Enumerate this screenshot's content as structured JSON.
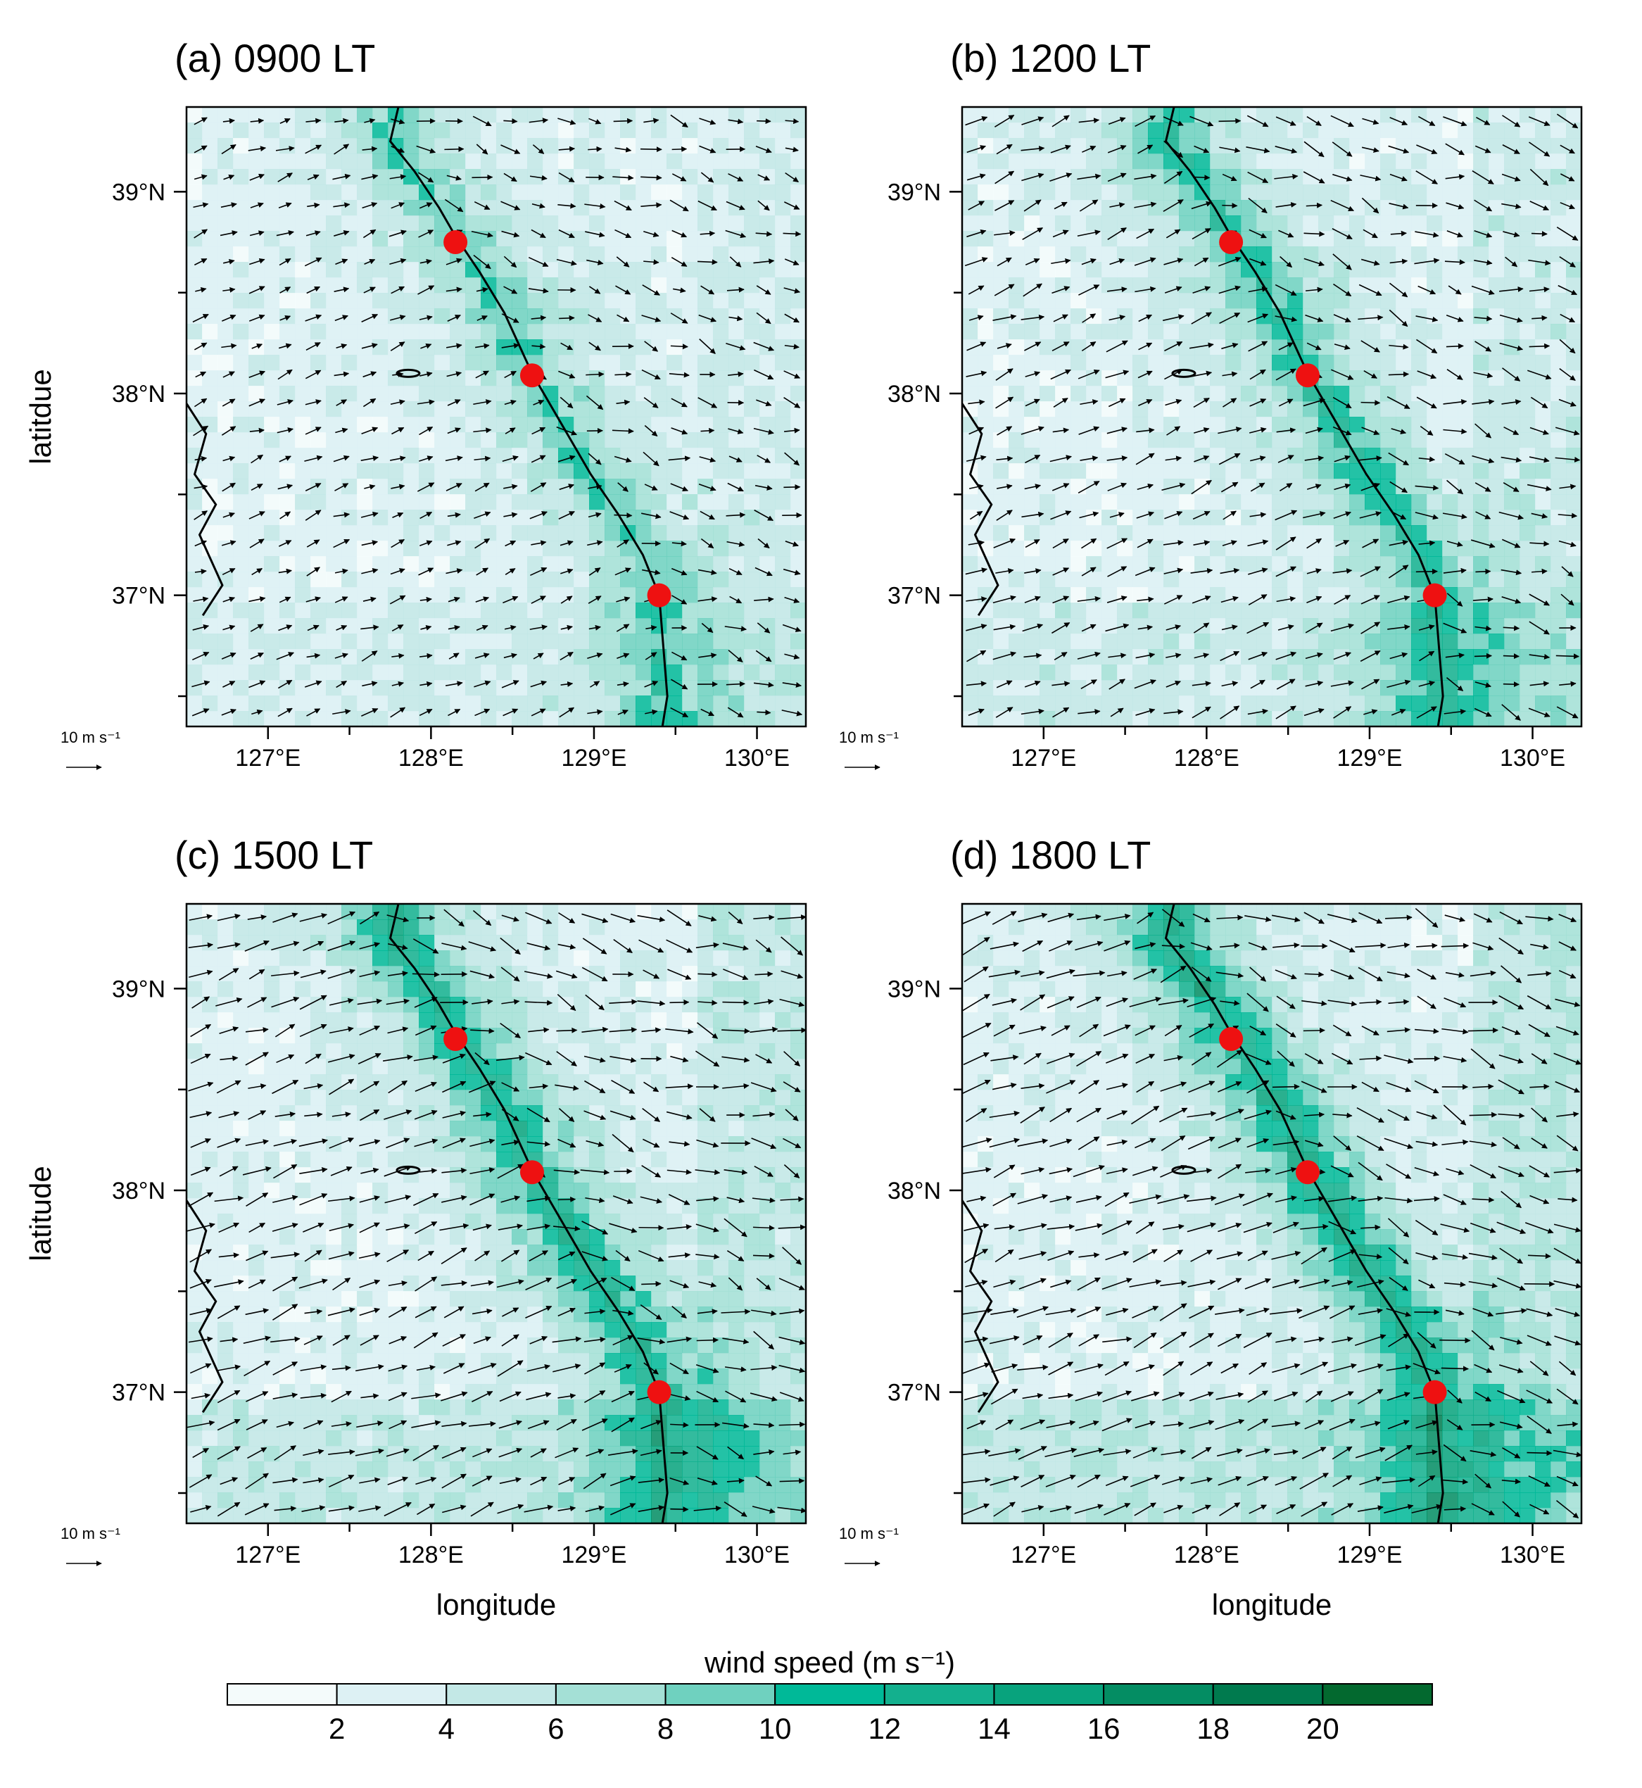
{
  "figure": {
    "panels": [
      {
        "id": "a",
        "title": "(a) 0900 LT",
        "show_ylabel": true,
        "show_xlabel": false,
        "intensity": 0.35
      },
      {
        "id": "b",
        "title": "(b) 1200 LT",
        "show_ylabel": false,
        "show_xlabel": false,
        "intensity": 0.55
      },
      {
        "id": "c",
        "title": "(c) 1500 LT",
        "show_ylabel": true,
        "show_xlabel": true,
        "intensity": 0.75
      },
      {
        "id": "d",
        "title": "(d) 1800 LT",
        "show_ylabel": false,
        "show_xlabel": true,
        "intensity": 0.85
      }
    ],
    "ylabel_top": "latitdue",
    "ylabel_bottom": "latitude",
    "xlabel": "longitude",
    "x_ticks": [
      {
        "lon": 127,
        "label": "127°E"
      },
      {
        "lon": 128,
        "label": "128°E"
      },
      {
        "lon": 129,
        "label": "129°E"
      },
      {
        "lon": 130,
        "label": "130°E"
      }
    ],
    "y_ticks": [
      {
        "lat": 39,
        "label": "39°N"
      },
      {
        "lat": 38,
        "label": "38°N"
      },
      {
        "lat": 37,
        "label": "37°N"
      }
    ],
    "reference_vector": {
      "label": "10 m s⁻¹",
      "speed": 10
    },
    "stations": [
      {
        "lon": 128.15,
        "lat": 38.75
      },
      {
        "lon": 128.62,
        "lat": 38.09
      },
      {
        "lon": 129.4,
        "lat": 37.0
      }
    ],
    "station_color": "#ee1111",
    "colorbar": {
      "title": "wind speed (m s⁻¹)",
      "colors": [
        "#f4fbfb",
        "#ddf1f4",
        "#c3e8e6",
        "#a4e0d6",
        "#6fd1bf",
        "#00b998",
        "#13b08e",
        "#08a37d",
        "#048d63",
        "#007a4e",
        "#03692f"
      ],
      "labels": [
        "2",
        "4",
        "6",
        "8",
        "10",
        "12",
        "14",
        "16",
        "18",
        "20"
      ]
    }
  }
}
